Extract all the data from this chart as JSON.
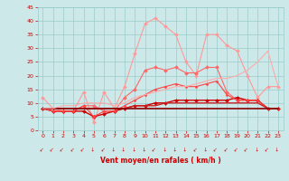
{
  "x": [
    0,
    1,
    2,
    3,
    4,
    5,
    6,
    7,
    8,
    9,
    10,
    11,
    12,
    13,
    14,
    15,
    16,
    17,
    18,
    19,
    20,
    21,
    22,
    23
  ],
  "series": [
    {
      "color": "#ff9999",
      "lw": 0.8,
      "marker": "D",
      "ms": 2,
      "y": [
        12,
        8,
        7,
        7,
        14,
        3,
        14,
        8,
        16,
        28,
        39,
        41,
        38,
        35,
        25,
        20,
        35,
        35,
        31,
        29,
        20,
        12,
        16,
        16
      ]
    },
    {
      "color": "#ff6666",
      "lw": 0.8,
      "marker": "D",
      "ms": 2,
      "y": [
        8,
        7,
        7,
        7,
        9,
        9,
        7,
        7,
        12,
        15,
        22,
        23,
        22,
        23,
        21,
        21,
        23,
        23,
        14,
        11,
        11,
        11,
        8,
        8
      ]
    },
    {
      "color": "#cc0000",
      "lw": 1.0,
      "marker": "D",
      "ms": 2,
      "y": [
        8,
        7,
        7,
        7,
        7,
        5,
        6,
        7,
        8,
        9,
        9,
        10,
        10,
        11,
        11,
        11,
        11,
        11,
        11,
        12,
        11,
        11,
        8,
        8
      ]
    },
    {
      "color": "#ff4444",
      "lw": 0.8,
      "marker": "D",
      "ms": 1.5,
      "y": [
        8,
        7,
        7,
        7,
        9,
        5,
        7,
        7,
        9,
        11,
        13,
        15,
        16,
        17,
        16,
        16,
        17,
        18,
        13,
        11,
        11,
        11,
        8,
        8
      ]
    },
    {
      "color": "#cc2222",
      "lw": 1.0,
      "marker": null,
      "ms": 0,
      "y": [
        8,
        8,
        8,
        8,
        8,
        8,
        8,
        8,
        8,
        9,
        9,
        9,
        10,
        10,
        10,
        10,
        10,
        10,
        10,
        10,
        10,
        10,
        8,
        8
      ]
    },
    {
      "color": "#880000",
      "lw": 1.2,
      "marker": null,
      "ms": 0,
      "y": [
        8,
        8,
        8,
        8,
        8,
        8,
        8,
        8,
        8,
        8,
        8,
        8,
        8,
        8,
        8,
        8,
        8,
        8,
        8,
        8,
        8,
        8,
        8,
        8
      ]
    },
    {
      "color": "#ffaaaa",
      "lw": 0.8,
      "marker": null,
      "ms": 0,
      "y": [
        8,
        8,
        9,
        9,
        10,
        10,
        10,
        9,
        10,
        12,
        13,
        14,
        15,
        16,
        16,
        17,
        18,
        19,
        19,
        20,
        22,
        25,
        29,
        16
      ]
    }
  ],
  "xlim": [
    -0.5,
    23.5
  ],
  "ylim": [
    0,
    45
  ],
  "yticks": [
    0,
    5,
    10,
    15,
    20,
    25,
    30,
    35,
    40,
    45
  ],
  "xticks": [
    0,
    1,
    2,
    3,
    4,
    5,
    6,
    7,
    8,
    9,
    10,
    11,
    12,
    13,
    14,
    15,
    16,
    17,
    18,
    19,
    20,
    21,
    22,
    23
  ],
  "xlabel": "Vent moyen/en rafales ( km/h )",
  "bg_color": "#cce8e8",
  "grid_color": "#99cccc",
  "arrow_color": "#cc0000",
  "tick_color": "#cc0000"
}
